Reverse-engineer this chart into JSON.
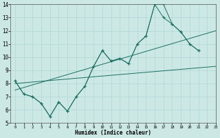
{
  "xlabel": "Humidex (Indice chaleur)",
  "xlim": [
    -0.5,
    23
  ],
  "ylim": [
    5,
    14
  ],
  "xticks": [
    0,
    1,
    2,
    3,
    4,
    5,
    6,
    7,
    8,
    9,
    10,
    11,
    12,
    13,
    14,
    15,
    16,
    17,
    18,
    19,
    20,
    21,
    22,
    23
  ],
  "yticks": [
    5,
    6,
    7,
    8,
    9,
    10,
    11,
    12,
    13,
    14
  ],
  "background_color": "#cce8e5",
  "grid_color": "#a8d4d0",
  "line_color": "#1a7060",
  "line1_x": [
    0,
    1,
    2,
    3,
    4,
    5,
    6,
    7,
    8,
    9,
    10,
    11,
    12,
    13,
    14,
    15,
    16,
    17,
    18,
    19,
    20,
    21
  ],
  "line1_y": [
    8.2,
    7.2,
    7.0,
    6.5,
    5.5,
    6.6,
    5.9,
    7.0,
    7.8,
    9.3,
    10.5,
    9.7,
    9.9,
    9.5,
    11.0,
    11.6,
    14.0,
    14.0,
    12.5,
    11.9,
    11.0,
    10.5
  ],
  "line2_x": [
    0,
    1,
    2,
    3,
    4,
    5,
    6,
    7,
    8,
    9,
    10,
    11,
    12,
    13,
    14,
    15,
    16,
    17,
    18,
    19,
    20,
    21
  ],
  "line2_y": [
    8.2,
    7.2,
    7.0,
    6.5,
    5.5,
    6.6,
    5.9,
    7.0,
    7.8,
    9.3,
    10.5,
    9.7,
    9.9,
    9.5,
    11.0,
    11.6,
    14.0,
    13.0,
    12.5,
    11.9,
    11.0,
    10.5
  ],
  "line3_x": [
    0,
    23
  ],
  "line3_y": [
    8.0,
    9.3
  ],
  "line4_x": [
    0,
    23
  ],
  "line4_y": [
    7.5,
    12.0
  ]
}
